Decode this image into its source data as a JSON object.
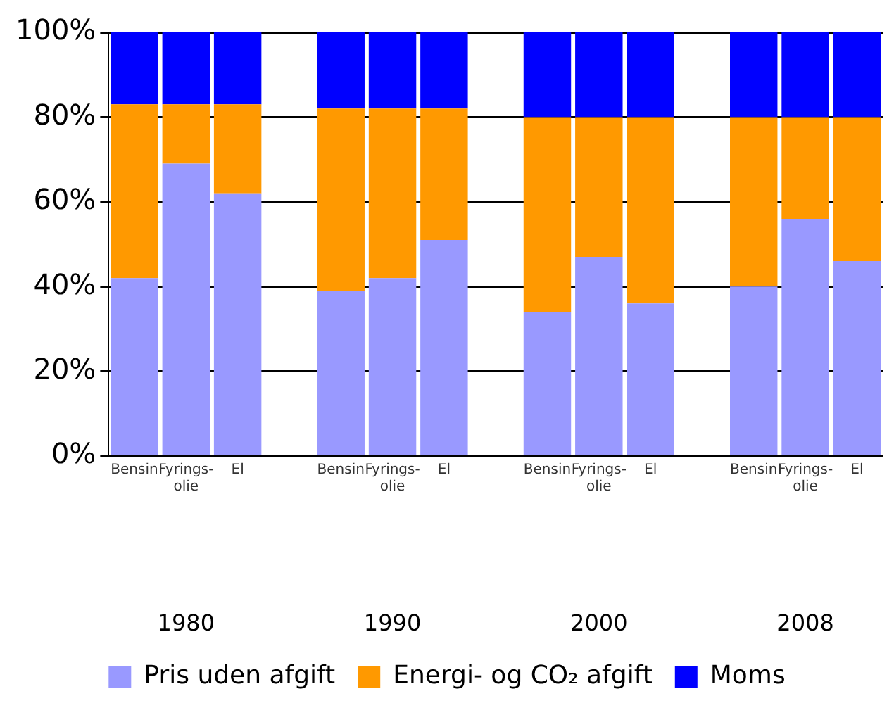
{
  "chart_data": {
    "type": "bar",
    "stacked": true,
    "categories": [
      "Bensin",
      "Fyrings-\nolie",
      "El",
      null,
      "Bensin",
      "Fyrings-\nolie",
      "El",
      null,
      "Bensin",
      "Fyrings-\nolie",
      "El",
      null,
      "Bensin",
      "Fyrings-\nolie",
      "El"
    ],
    "series": [
      {
        "name": "Pris uden afgift",
        "color": "#9999ff",
        "values": [
          42,
          69,
          62,
          null,
          39,
          42,
          51,
          null,
          34,
          47,
          36,
          null,
          40,
          56,
          46
        ]
      },
      {
        "name": "Energi- og CO₂ afgift",
        "color": "#ff9900",
        "values": [
          41,
          14,
          21,
          null,
          43,
          40,
          31,
          null,
          46,
          33,
          44,
          null,
          40,
          24,
          34
        ]
      },
      {
        "name": "Moms",
        "color": "#0000ff",
        "values": [
          17,
          17,
          17,
          null,
          18,
          18,
          18,
          null,
          20,
          20,
          20,
          null,
          20,
          20,
          20
        ]
      }
    ],
    "ylim": [
      0,
      100
    ],
    "yticks": [
      {
        "value": 0,
        "label": "0%"
      },
      {
        "value": 20,
        "label": "20%"
      },
      {
        "value": 40,
        "label": "40%"
      },
      {
        "value": 60,
        "label": "60%"
      },
      {
        "value": 80,
        "label": "80%"
      },
      {
        "value": 100,
        "label": "100%"
      }
    ],
    "annotations": [
      "1980",
      "1990",
      "2000",
      "2008"
    ],
    "grid": "y",
    "legend": "bottom"
  }
}
